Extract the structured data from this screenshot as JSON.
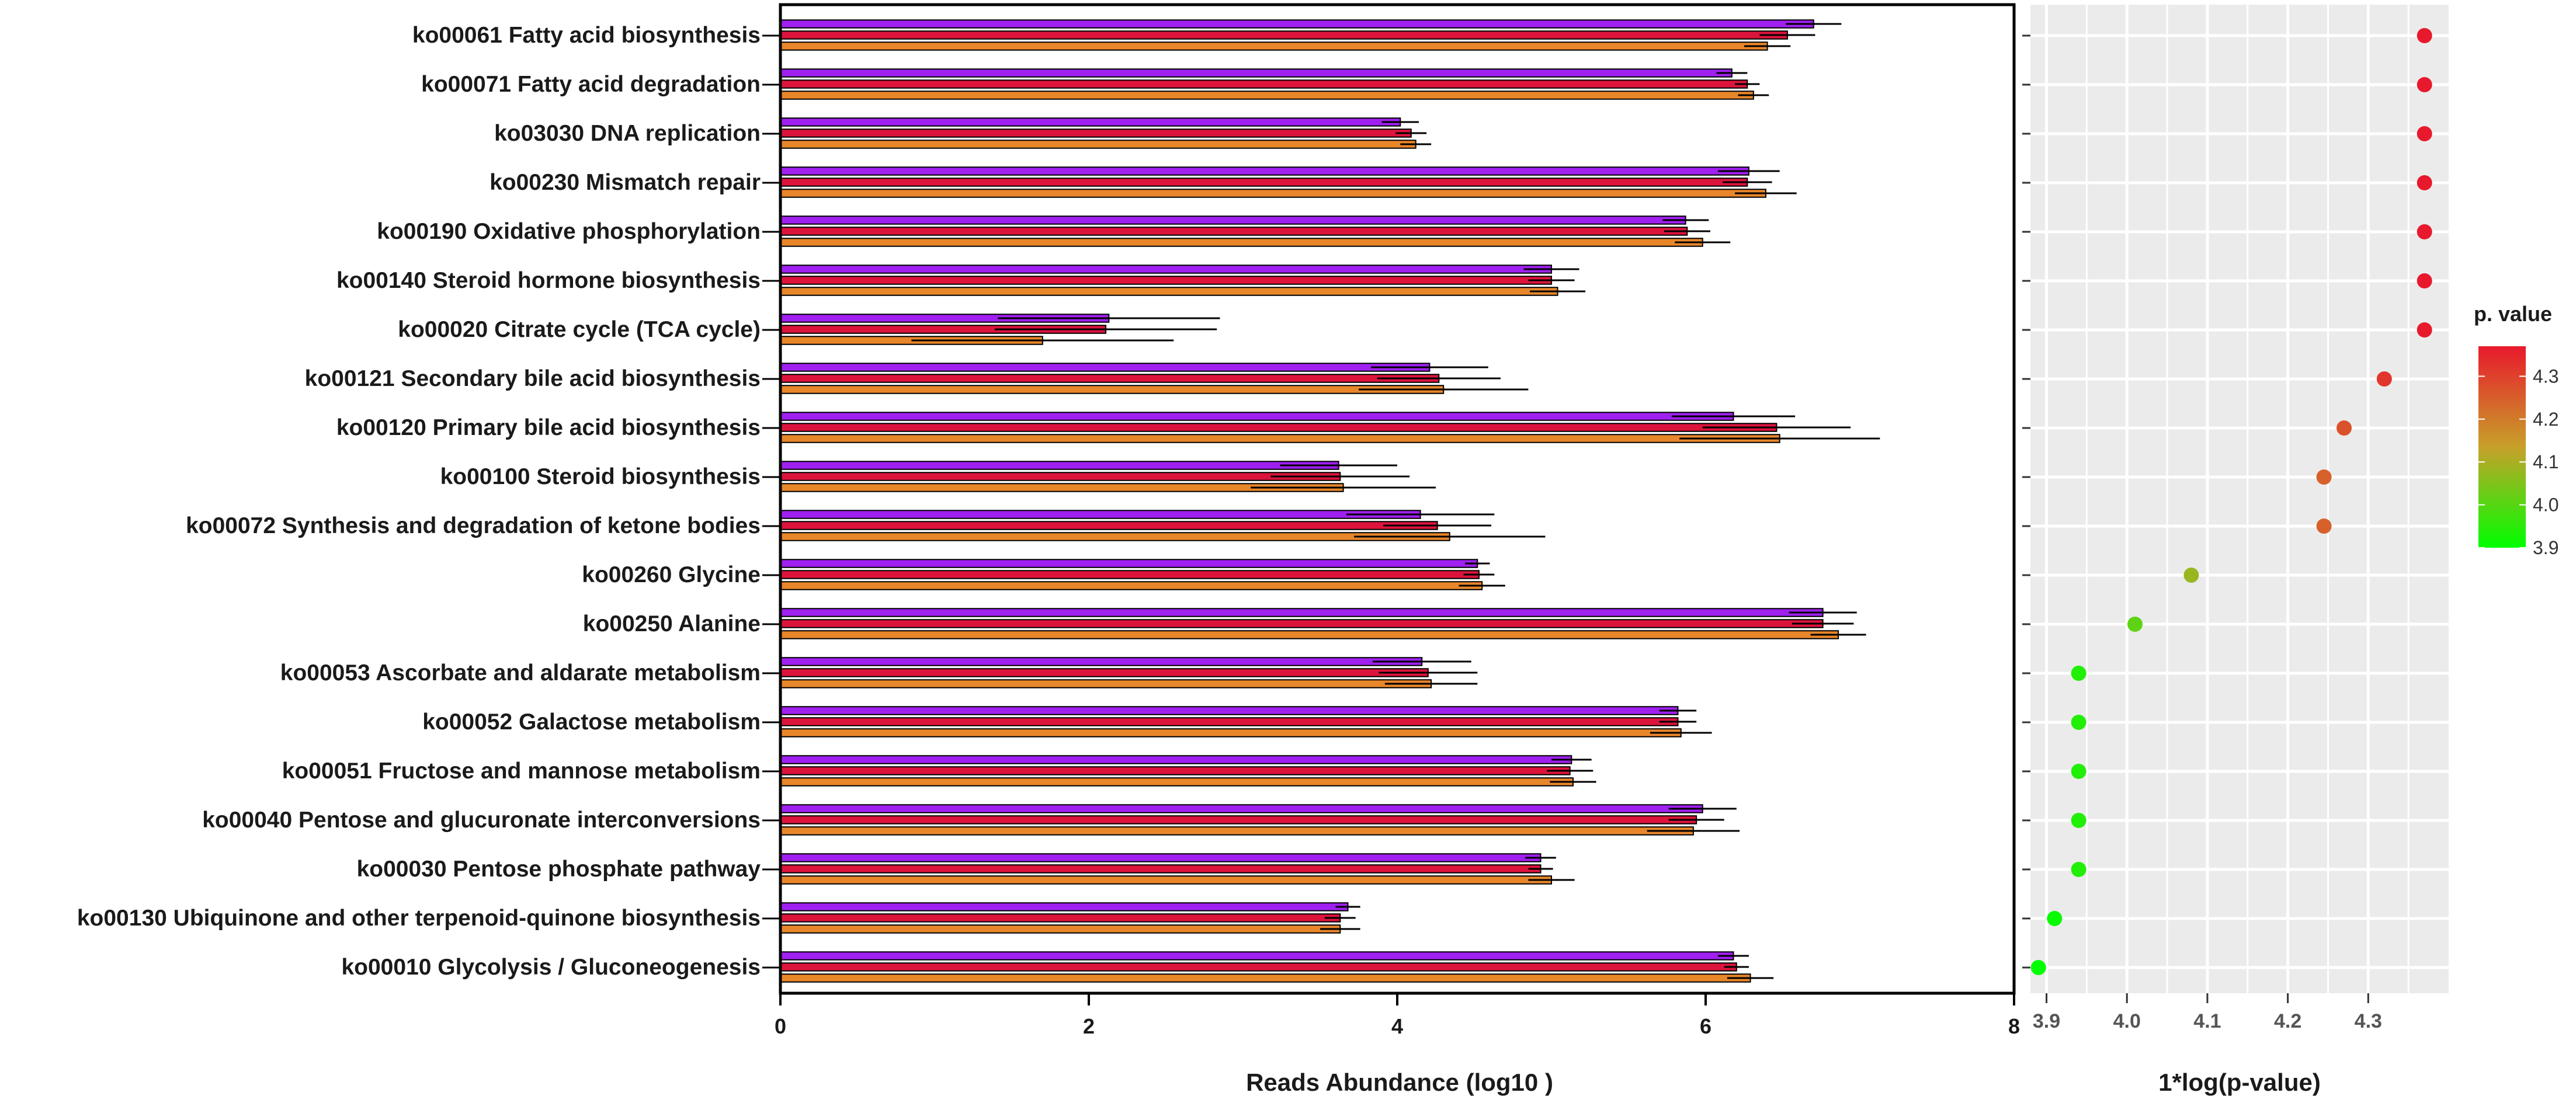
{
  "chart_data": [
    {
      "type": "bar",
      "orientation": "horizontal",
      "xlabel": "Reads Abundance (log10 )",
      "ylabel": "",
      "xlim": [
        0,
        8
      ],
      "x_ticks": [
        "0",
        "2",
        "4",
        "6",
        "8"
      ],
      "grid": false,
      "categories": [
        "ko00061 Fatty acid biosynthesis",
        "ko00071 Fatty acid degradation",
        "ko03030 DNA replication",
        "ko00230 Mismatch repair",
        "ko00190 Oxidative phosphorylation",
        "ko00140 Steroid hormone biosynthesis",
        "ko00020 Citrate cycle (TCA cycle)",
        "ko00121 Secondary bile acid biosynthesis",
        "ko00120 Primary bile acid biosynthesis",
        "ko00100 Steroid biosynthesis",
        "ko00072 Synthesis and degradation of ketone bodies",
        "ko00260 Glycine",
        "ko00250 Alanine",
        "ko00053 Ascorbate and aldarate metabolism",
        "ko00052 Galactose metabolism",
        "ko00051 Fructose and mannose metabolism",
        "ko00040 Pentose and glucuronate interconversions",
        "ko00030 Pentose phosphate pathway",
        "ko00130 Ubiquinone and other terpenoid-quinone biosynthesis",
        "ko00010 Glycolysis / Gluconeogenesis"
      ],
      "series": [
        {
          "color": "#a020f0",
          "values": [
            6.7,
            6.17,
            4.02,
            6.28,
            5.87,
            5.0,
            2.13,
            4.21,
            6.18,
            3.62,
            4.15,
            4.52,
            6.76,
            4.16,
            5.82,
            5.13,
            5.98,
            4.93,
            3.68,
            6.18
          ],
          "errors": [
            0.18,
            0.1,
            0.12,
            0.2,
            0.15,
            0.18,
            0.72,
            0.38,
            0.4,
            0.38,
            0.48,
            0.08,
            0.22,
            0.32,
            0.12,
            0.13,
            0.22,
            0.1,
            0.08,
            0.1
          ]
        },
        {
          "color": "#dc143c",
          "values": [
            6.53,
            6.27,
            4.09,
            6.27,
            5.88,
            5.0,
            2.11,
            4.27,
            6.46,
            3.63,
            4.26,
            4.53,
            6.76,
            4.2,
            5.82,
            5.12,
            5.94,
            4.93,
            3.63,
            6.2
          ],
          "errors": [
            0.18,
            0.08,
            0.1,
            0.16,
            0.15,
            0.15,
            0.72,
            0.4,
            0.48,
            0.45,
            0.35,
            0.1,
            0.2,
            0.32,
            0.12,
            0.15,
            0.18,
            0.08,
            0.1,
            0.08
          ]
        },
        {
          "color": "#e8862a",
          "values": [
            6.4,
            6.31,
            4.12,
            6.39,
            5.98,
            5.04,
            1.7,
            4.3,
            6.48,
            3.65,
            4.34,
            4.55,
            6.86,
            4.22,
            5.84,
            5.14,
            5.92,
            5.0,
            3.63,
            6.29
          ],
          "errors": [
            0.15,
            0.1,
            0.1,
            0.2,
            0.18,
            0.18,
            0.85,
            0.55,
            0.65,
            0.6,
            0.62,
            0.15,
            0.18,
            0.3,
            0.2,
            0.15,
            0.3,
            0.15,
            0.13,
            0.15
          ]
        }
      ]
    },
    {
      "type": "scatter",
      "xlabel": "1*log(p-value)",
      "xlim": [
        3.88,
        4.4
      ],
      "x_ticks": [
        "3.9",
        "4.0",
        "4.1",
        "4.2",
        "4.3"
      ],
      "grid": true,
      "categories_shared": true,
      "x": [
        4.37,
        4.37,
        4.37,
        4.37,
        4.37,
        4.37,
        4.37,
        4.32,
        4.27,
        4.245,
        4.245,
        4.08,
        4.01,
        3.94,
        3.94,
        3.94,
        3.94,
        3.94,
        3.91,
        3.89
      ],
      "legend": {
        "title": "p. value",
        "position": "right",
        "ticks": [
          "4.3",
          "4.2",
          "4.1",
          "4.0",
          "3.9"
        ],
        "range": [
          3.9,
          4.37
        ],
        "low_color": "#00ff00",
        "mid_color": "#c8a02a",
        "high_color": "#e8192c"
      }
    }
  ]
}
